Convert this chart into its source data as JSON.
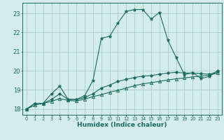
{
  "title": "",
  "xlabel": "Humidex (Indice chaleur)",
  "ylabel": "",
  "background_color": "#d4ecea",
  "grid_color": "#a8ccca",
  "line_color": "#1a6b60",
  "x_values": [
    0,
    1,
    2,
    3,
    4,
    5,
    6,
    7,
    8,
    9,
    10,
    11,
    12,
    13,
    14,
    15,
    16,
    17,
    18,
    19,
    20,
    21,
    22,
    23
  ],
  "ylim": [
    17.7,
    23.55
  ],
  "xlim": [
    -0.5,
    23.5
  ],
  "yticks": [
    18,
    19,
    20,
    21,
    22,
    23
  ],
  "series1": [
    18.0,
    18.3,
    18.3,
    18.8,
    19.2,
    18.5,
    18.5,
    18.7,
    19.5,
    21.7,
    21.8,
    22.5,
    23.1,
    23.2,
    23.2,
    22.7,
    23.05,
    21.6,
    20.7,
    19.8,
    19.9,
    19.6,
    19.7,
    20.0
  ],
  "series2": [
    18.0,
    18.3,
    18.3,
    18.5,
    18.8,
    18.5,
    18.5,
    18.6,
    18.8,
    19.1,
    19.25,
    19.45,
    19.55,
    19.65,
    19.72,
    19.75,
    19.82,
    19.88,
    19.92,
    19.88,
    19.88,
    19.85,
    19.82,
    19.95
  ],
  "series3": [
    18.0,
    18.2,
    18.3,
    18.4,
    18.55,
    18.45,
    18.42,
    18.52,
    18.65,
    18.75,
    18.88,
    18.98,
    19.1,
    19.22,
    19.32,
    19.38,
    19.45,
    19.52,
    19.58,
    19.62,
    19.68,
    19.72,
    19.78,
    19.88
  ],
  "marker1": "*",
  "marker2": "D",
  "marker3": "^"
}
